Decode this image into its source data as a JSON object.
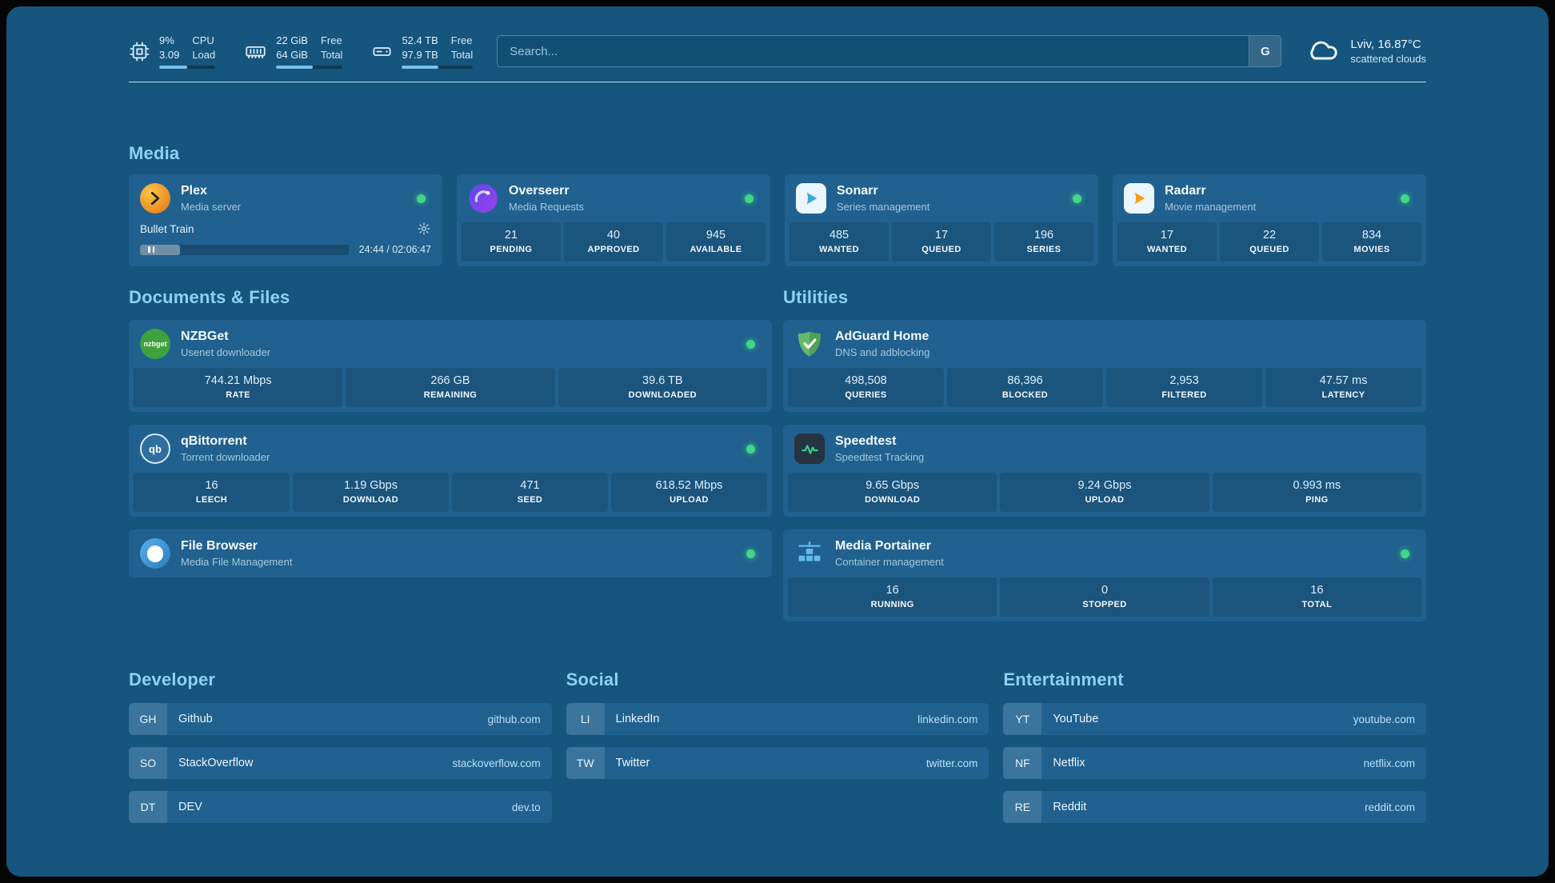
{
  "colors": {
    "background": "#15557e",
    "card": "#20618f",
    "heading_accent": "#8ed1f4",
    "status_online": "#40d787",
    "link": "#b9e0f8"
  },
  "header": {
    "resources": [
      {
        "icon": "cpu-icon",
        "value_top": "9%",
        "value_bottom": "3.09",
        "label_top": "CPU",
        "label_bottom": "Load",
        "progress": 50
      },
      {
        "icon": "memory-icon",
        "value_top": "22 GiB",
        "value_bottom": "64 GiB",
        "label_top": "Free",
        "label_bottom": "Total",
        "progress": 55
      },
      {
        "icon": "disk-icon",
        "value_top": "52.4 TB",
        "value_bottom": "97.9 TB",
        "label_top": "Free",
        "label_bottom": "Total",
        "progress": 51
      }
    ],
    "search": {
      "placeholder": "Search...",
      "provider_label": "G"
    },
    "weather": {
      "location": "Lviv, 16.87°C",
      "condition": "scattered clouds"
    }
  },
  "sections": {
    "media": "Media",
    "documents": "Documents & Files",
    "utilities": "Utilities",
    "developer": "Developer",
    "social": "Social",
    "entertainment": "Entertainment"
  },
  "services": {
    "plex": {
      "name": "Plex",
      "description": "Media server",
      "now_playing": {
        "title": "Bullet Train",
        "time": "24:44 / 02:06:47",
        "progress": 19
      }
    },
    "overseerr": {
      "name": "Overseerr",
      "description": "Media Requests",
      "stats": [
        {
          "value": "21",
          "label": "PENDING"
        },
        {
          "value": "40",
          "label": "APPROVED"
        },
        {
          "value": "945",
          "label": "AVAILABLE"
        }
      ]
    },
    "sonarr": {
      "name": "Sonarr",
      "description": "Series management",
      "stats": [
        {
          "value": "485",
          "label": "WANTED"
        },
        {
          "value": "17",
          "label": "QUEUED"
        },
        {
          "value": "196",
          "label": "SERIES"
        }
      ]
    },
    "radarr": {
      "name": "Radarr",
      "description": "Movie management",
      "stats": [
        {
          "value": "17",
          "label": "WANTED"
        },
        {
          "value": "22",
          "label": "QUEUED"
        },
        {
          "value": "834",
          "label": "MOVIES"
        }
      ]
    },
    "nzbget": {
      "name": "NZBGet",
      "description": "Usenet downloader",
      "icon_text": "nzbget",
      "stats": [
        {
          "value": "744.21 Mbps",
          "label": "RATE"
        },
        {
          "value": "266 GB",
          "label": "REMAINING"
        },
        {
          "value": "39.6 TB",
          "label": "DOWNLOADED"
        }
      ]
    },
    "qbittorrent": {
      "name": "qBittorrent",
      "description": "Torrent downloader",
      "icon_text": "qb",
      "stats": [
        {
          "value": "16",
          "label": "LEECH"
        },
        {
          "value": "1.19 Gbps",
          "label": "DOWNLOAD"
        },
        {
          "value": "471",
          "label": "SEED"
        },
        {
          "value": "618.52 Mbps",
          "label": "UPLOAD"
        }
      ]
    },
    "filebrowser": {
      "name": "File Browser",
      "description": "Media File Management"
    },
    "adguard": {
      "name": "AdGuard Home",
      "description": "DNS and adblocking",
      "stats": [
        {
          "value": "498,508",
          "label": "QUERIES"
        },
        {
          "value": "86,396",
          "label": "BLOCKED"
        },
        {
          "value": "2,953",
          "label": "FILTERED"
        },
        {
          "value": "47.57 ms",
          "label": "LATENCY"
        }
      ]
    },
    "speedtest": {
      "name": "Speedtest",
      "description": "Speedtest Tracking",
      "stats": [
        {
          "value": "9.65 Gbps",
          "label": "DOWNLOAD"
        },
        {
          "value": "9.24 Gbps",
          "label": "UPLOAD"
        },
        {
          "value": "0.993 ms",
          "label": "PING"
        }
      ]
    },
    "portainer": {
      "name": "Media Portainer",
      "description": "Container management",
      "stats": [
        {
          "value": "16",
          "label": "RUNNING"
        },
        {
          "value": "0",
          "label": "STOPPED"
        },
        {
          "value": "16",
          "label": "TOTAL"
        }
      ]
    }
  },
  "bookmarks": {
    "developer": [
      {
        "abbr": "GH",
        "name": "Github",
        "url": "github.com"
      },
      {
        "abbr": "SO",
        "name": "StackOverflow",
        "url": "stackoverflow.com"
      },
      {
        "abbr": "DT",
        "name": "DEV",
        "url": "dev.to"
      }
    ],
    "social": [
      {
        "abbr": "LI",
        "name": "LinkedIn",
        "url": "linkedin.com"
      },
      {
        "abbr": "TW",
        "name": "Twitter",
        "url": "twitter.com"
      }
    ],
    "entertainment": [
      {
        "abbr": "YT",
        "name": "YouTube",
        "url": "youtube.com"
      },
      {
        "abbr": "NF",
        "name": "Netflix",
        "url": "netflix.com"
      },
      {
        "abbr": "RE",
        "name": "Reddit",
        "url": "reddit.com"
      }
    ]
  }
}
